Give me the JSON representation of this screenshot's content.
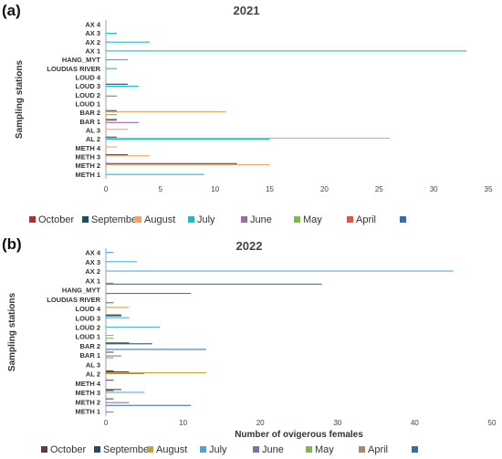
{
  "chart_data": [
    {
      "type": "bar",
      "orientation": "horizontal",
      "panel_label": "(a)",
      "title": "2021",
      "ylabel": "Sampling stations",
      "xlabel": "",
      "xlim": [
        0,
        35
      ],
      "xticks": [
        "0",
        "5",
        "10",
        "15",
        "20",
        "25",
        "30",
        "35"
      ],
      "categories": [
        "AX 4",
        "AX 3",
        "AX 2",
        "AX 1",
        "HANG_MYT",
        "LOUDIAS RIVER",
        "LOUD 4",
        "LOUD 3",
        "LOUD 2",
        "LOUD 1",
        "BAR 2",
        "BAR 1",
        "AL 3",
        "AL 2",
        "METH 4",
        "METH 3",
        "METH 2",
        "METH 1"
      ],
      "legend": [
        "October",
        "September",
        "August",
        "July",
        "June",
        "May",
        "April",
        ""
      ],
      "series": [
        {
          "name": "October",
          "color": "#b03030",
          "values": [
            0,
            0,
            0,
            0,
            0,
            0,
            0,
            0,
            0,
            0,
            0,
            0,
            0,
            0,
            0,
            0,
            0,
            0
          ]
        },
        {
          "name": "September",
          "color": "#1f4e66",
          "values": [
            0,
            0,
            0,
            0,
            0,
            0,
            0,
            2,
            0,
            0,
            1,
            1,
            0,
            1,
            0,
            2,
            12,
            0
          ]
        },
        {
          "name": "August",
          "color": "#f4a460",
          "values": [
            0,
            0,
            0,
            0,
            0,
            0,
            0,
            0,
            0,
            0,
            11,
            1,
            2,
            26,
            1,
            4,
            15,
            0
          ]
        },
        {
          "name": "July",
          "color": "#17becf",
          "values": [
            0,
            1,
            4,
            33,
            2,
            1,
            0,
            3,
            0,
            0,
            0,
            0,
            0,
            15,
            0,
            0,
            0,
            9
          ]
        },
        {
          "name": "June",
          "color": "#9b6bb0",
          "values": [
            0,
            0,
            0,
            0,
            0,
            0,
            0,
            0,
            1,
            0,
            0,
            3,
            0,
            0,
            0,
            0,
            0,
            0
          ]
        },
        {
          "name": "May",
          "color": "#7dbb42",
          "values": [
            0,
            0,
            0,
            0,
            0,
            0,
            0,
            0,
            0,
            0,
            1,
            0,
            0,
            0,
            0,
            0,
            0,
            0
          ]
        },
        {
          "name": "April",
          "color": "#e8504a",
          "values": [
            0,
            0,
            0,
            0,
            0,
            0,
            0,
            0,
            0,
            0,
            0,
            0,
            0,
            0,
            0,
            0,
            0,
            0
          ]
        }
      ]
    },
    {
      "type": "bar",
      "orientation": "horizontal",
      "panel_label": "(b)",
      "title": "2022",
      "ylabel": "Sampling stations",
      "xlabel": "Number of ovigerous females",
      "xlim": [
        0,
        50
      ],
      "xticks": [
        "0",
        "10",
        "20",
        "30",
        "40",
        "50"
      ],
      "categories": [
        "AX 4",
        "AX 3",
        "AX 2",
        "AX 1",
        "HANG_MYT",
        "LOUDIAS RIVER",
        "LOUD 4",
        "LOUD 3",
        "LOUD 2",
        "LOUD 1",
        "BAR 2",
        "BAR 1",
        "AL 3",
        "AL 2",
        "METH 4",
        "METH 3",
        "METH 2",
        "METH 1"
      ],
      "legend": [
        "October",
        "September",
        "August",
        "July",
        "June",
        "May",
        "April",
        ""
      ],
      "series": [
        {
          "name": "October",
          "color": "#5c4033",
          "values": [
            0,
            0,
            0,
            0,
            0,
            0,
            0,
            2,
            0,
            0,
            3,
            1,
            0,
            1,
            1,
            2,
            1,
            0
          ]
        },
        {
          "name": "September",
          "color": "#1f4e66",
          "values": [
            0,
            0,
            0,
            0,
            0,
            0,
            0,
            2,
            0,
            0,
            6,
            0,
            0,
            3,
            0,
            1,
            0,
            0
          ]
        },
        {
          "name": "August",
          "color": "#c8a42c",
          "values": [
            0,
            0,
            0,
            0,
            0,
            0,
            3,
            0,
            0,
            1,
            0,
            0,
            0,
            13,
            0,
            0,
            0,
            0
          ]
        },
        {
          "name": "July",
          "color": "#3fa9dd",
          "values": [
            1,
            4,
            45,
            0,
            0,
            0,
            0,
            3,
            7,
            0,
            0,
            0,
            0,
            5,
            0,
            5,
            0,
            0
          ]
        },
        {
          "name": "June",
          "color": "#8c6aa8",
          "values": [
            0,
            0,
            0,
            0,
            0,
            0,
            0,
            0,
            0,
            0,
            0,
            2,
            0,
            0,
            0,
            0,
            3,
            1
          ]
        },
        {
          "name": "May",
          "color": "#7dbb42",
          "values": [
            0,
            0,
            0,
            0,
            0,
            0,
            0,
            0,
            0,
            1,
            0,
            0,
            0,
            0,
            0,
            0,
            0,
            0
          ]
        },
        {
          "name": "April",
          "color": "#b5836e",
          "values": [
            0,
            0,
            0,
            1,
            0,
            0,
            0,
            0,
            0,
            0,
            0,
            1,
            0,
            0,
            0,
            0,
            0,
            0
          ]
        },
        {
          "name": "",
          "color": "#2f6db5",
          "values": [
            0,
            0,
            0,
            28,
            11,
            1,
            0,
            0,
            0,
            0,
            13,
            0,
            0,
            0,
            0,
            0,
            11,
            0
          ]
        }
      ]
    }
  ]
}
